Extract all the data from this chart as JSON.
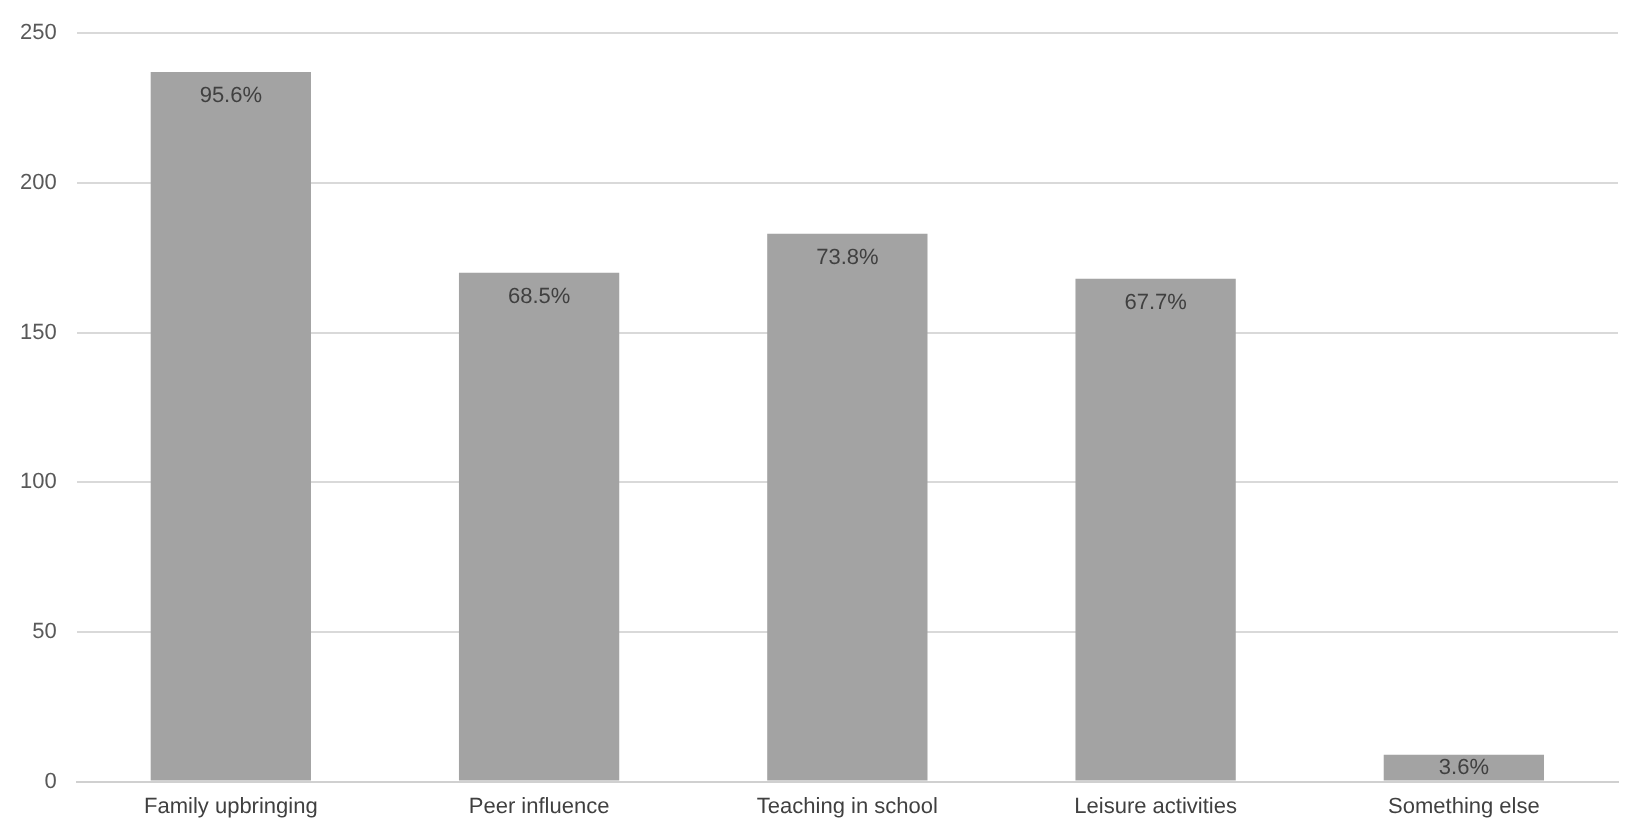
{
  "chart_data": {
    "type": "bar",
    "categories": [
      "Family upbringing",
      "Peer influence",
      "Teaching in school",
      "Leisure activities",
      "Something else"
    ],
    "values": [
      237,
      170,
      183,
      168,
      9
    ],
    "annotations": [
      {
        "text": "95.6%",
        "x": "Family upbringing",
        "y": 237
      },
      {
        "text": "68.5%",
        "x": "Peer influence",
        "y": 170
      },
      {
        "text": "73.8%",
        "x": "Teaching in school",
        "y": 183
      },
      {
        "text": "67.7%",
        "x": "Leisure activities",
        "y": 168
      },
      {
        "text": "3.6%",
        "x": "Something else",
        "y": 9
      }
    ],
    "color": "#a3a3a3",
    "ylim": [
      0,
      250
    ],
    "yticks": [
      0,
      50,
      100,
      150,
      200,
      250
    ],
    "grid": "y",
    "legend": false
  }
}
